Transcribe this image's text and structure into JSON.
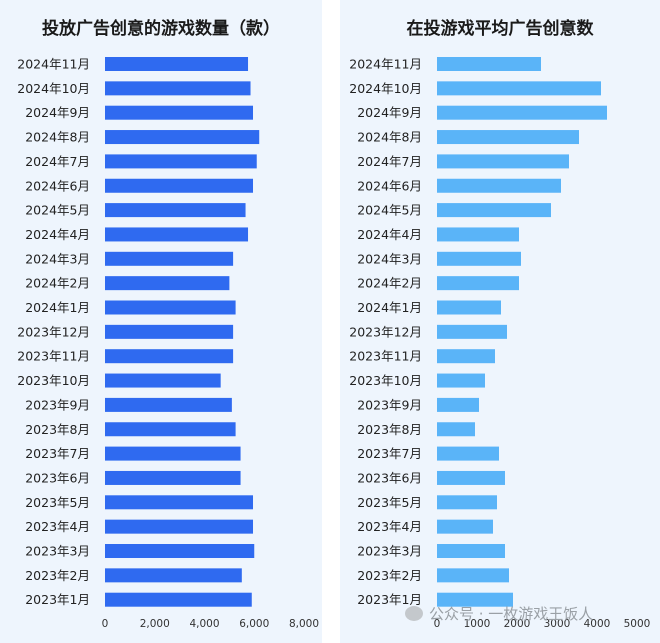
{
  "chart_data": [
    {
      "type": "bar",
      "orientation": "horizontal",
      "title": "投放广告创意的游戏数量（款）",
      "categories": [
        "2024年11月",
        "2024年10月",
        "2024年9月",
        "2024年8月",
        "2024年7月",
        "2024年6月",
        "2024年5月",
        "2024年4月",
        "2024年3月",
        "2024年2月",
        "2024年1月",
        "2023年12月",
        "2023年11月",
        "2023年10月",
        "2023年9月",
        "2023年8月",
        "2023年7月",
        "2023年6月",
        "2023年5月",
        "2023年4月",
        "2023年3月",
        "2023年2月",
        "2023年1月"
      ],
      "values": [
        5750,
        5850,
        5950,
        6200,
        6100,
        5950,
        5650,
        5750,
        5150,
        5000,
        5250,
        5150,
        5150,
        4650,
        5100,
        5250,
        5450,
        5450,
        5950,
        5950,
        6000,
        5500,
        5900
      ],
      "xlim": [
        0,
        8000
      ],
      "xticks": [
        "0",
        "2,000",
        "4,000",
        "6,000",
        "8,000"
      ],
      "color": "#2f6af0"
    },
    {
      "type": "bar",
      "orientation": "horizontal",
      "title": "在投游戏平均广告创意数",
      "categories": [
        "2024年11月",
        "2024年10月",
        "2024年9月",
        "2024年8月",
        "2024年7月",
        "2024年6月",
        "2024年5月",
        "2024年4月",
        "2024年3月",
        "2024年2月",
        "2024年1月",
        "2023年12月",
        "2023年11月",
        "2023年10月",
        "2023年9月",
        "2023年8月",
        "2023年7月",
        "2023年6月",
        "2023年5月",
        "2023年4月",
        "2023年3月",
        "2023年2月",
        "2023年1月"
      ],
      "values": [
        2600,
        4100,
        4250,
        3550,
        3300,
        3100,
        2850,
        2050,
        2100,
        2050,
        1600,
        1750,
        1450,
        1200,
        1050,
        950,
        1550,
        1700,
        1500,
        1400,
        1700,
        1800,
        1900
      ],
      "xlim": [
        0,
        5000
      ],
      "xticks": [
        "0",
        "1000",
        "2000",
        "3000",
        "4000",
        "5000"
      ],
      "color": "#5ab4f8"
    }
  ],
  "watermark": {
    "text": "公众号 · 一枚游戏王饭人",
    "icon": "wechat-icon"
  }
}
